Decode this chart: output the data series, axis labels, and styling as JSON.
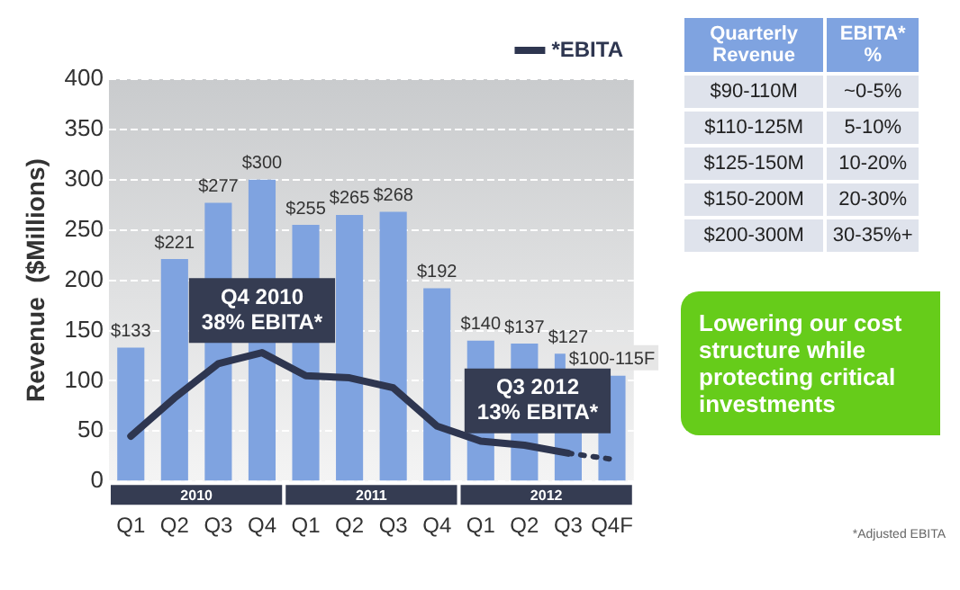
{
  "chart_data": [
    {
      "type": "bar",
      "ylabel": "Revenue  ($Millions)",
      "categories": [
        "Q1",
        "Q2",
        "Q3",
        "Q4",
        "Q1",
        "Q2",
        "Q3",
        "Q4",
        "Q1",
        "Q2",
        "Q3",
        "Q4F"
      ],
      "series": [
        {
          "type": "bar",
          "color": "#7fa3e0",
          "values": [
            133,
            221,
            277,
            300,
            255,
            265,
            268,
            192,
            140,
            137,
            127,
            105
          ],
          "value_labels": [
            "$133",
            "$221",
            "$277",
            "$300",
            "$255",
            "$265",
            "$268",
            "$192",
            "$140",
            "$137",
            "$127",
            "$100-115F"
          ]
        },
        {
          "type": "line",
          "name": "*EBITA",
          "color": "#2e3650",
          "values": [
            45,
            83,
            117,
            128,
            105,
            103,
            93,
            55,
            40,
            36,
            28,
            null
          ]
        },
        {
          "type": "line",
          "color": "#2e3650",
          "line_style": "dotted",
          "values": [
            null,
            null,
            null,
            null,
            null,
            null,
            null,
            null,
            null,
            null,
            28,
            22
          ]
        }
      ],
      "ylim": [
        0,
        400
      ],
      "yticks": [
        0,
        50,
        100,
        150,
        200,
        250,
        300,
        350,
        400
      ],
      "grid": "y",
      "legend": "top right",
      "marker": "none",
      "annotations": [
        "Q4 2010\n38% EBITA*",
        "Q3 2012\n13% EBITA*",
        "2010",
        "2011",
        "2012"
      ]
    },
    {
      "type": "other",
      "annotations": [
        "Quarterly Revenue",
        "EBITA* %",
        "$90-110M",
        "~0-5%",
        "$110-125M",
        "5-10%",
        "$125-150M",
        "10-20%",
        "$150-200M",
        "20-30%",
        "$200-300M",
        "30-35%+"
      ]
    },
    {
      "type": "other",
      "annotations": [
        "Lowering our cost structure while protecting critical investments",
        "*Adjusted EBITA"
      ]
    }
  ]
}
